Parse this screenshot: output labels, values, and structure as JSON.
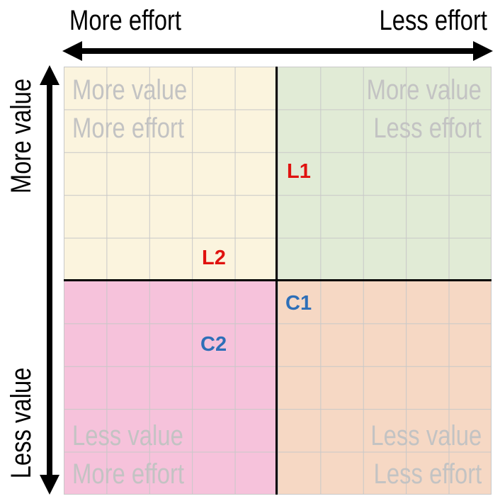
{
  "axes": {
    "top_left": "More effort",
    "top_right": "Less effort",
    "left_top": "More value",
    "left_bottom": "Less value"
  },
  "quadrants": {
    "top_left": {
      "line1": "More value",
      "line2": "More effort",
      "color": "#fbf4de"
    },
    "top_right": {
      "line1": "More value",
      "line2": "Less effort",
      "color": "#e1ebd6"
    },
    "bottom_left": {
      "line1": "Less value",
      "line2": "More effort",
      "color": "#f6c2db"
    },
    "bottom_right": {
      "line1": "Less value",
      "line2": "Less effort",
      "color": "#f6d8c4"
    }
  },
  "markers": [
    {
      "label": "L1",
      "color": "#e0120f"
    },
    {
      "label": "L2",
      "color": "#e0120f"
    },
    {
      "label": "C1",
      "color": "#2e6fb8"
    },
    {
      "label": "C2",
      "color": "#2e6fb8"
    }
  ]
}
